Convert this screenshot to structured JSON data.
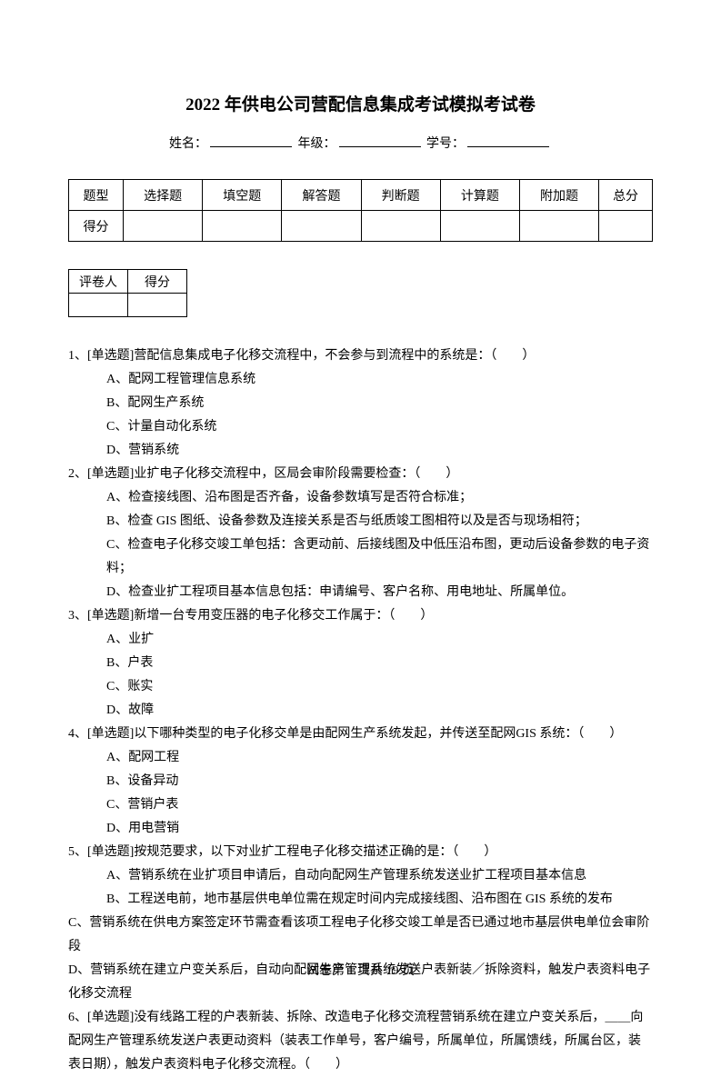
{
  "title": "2022 年供电公司营配信息集成考试模拟考试卷",
  "infoLabels": {
    "name": "姓名：",
    "grade": "年级：",
    "id": "学号："
  },
  "scoreTable": {
    "row1": [
      "题型",
      "选择题",
      "填空题",
      "解答题",
      "判断题",
      "计算题",
      "附加题",
      "总分"
    ],
    "row2": [
      "得分",
      "",
      "",
      "",
      "",
      "",
      "",
      ""
    ]
  },
  "graderTable": {
    "row1": [
      "评卷人",
      "得分"
    ],
    "row2": [
      "",
      ""
    ]
  },
  "q1": {
    "stem": "1、[单选题]营配信息集成电子化移交流程中，不会参与到流程中的系统是：（　　）",
    "a": "A、配网工程管理信息系统",
    "b": "B、配网生产系统",
    "c": "C、计量自动化系统",
    "d": "D、营销系统"
  },
  "q2": {
    "stem": "2、[单选题]业扩电子化移交流程中，区局会审阶段需要检查：（　　）",
    "a": "A、检查接线图、沿布图是否齐备，设备参数填写是否符合标准；",
    "b": "B、检查 GIS 图纸、设备参数及连接关系是否与纸质竣工图相符以及是否与现场相符；",
    "c": "C、检查电子化移交竣工单包括：含更动前、后接线图及中低压沿布图，更动后设备参数的电子资料；",
    "d": "D、检查业扩工程项目基本信息包括：申请编号、客户名称、用电地址、所属单位。"
  },
  "q3": {
    "stem": "3、[单选题]新增一台专用变压器的电子化移交工作属于：（　　）",
    "a": "A、业扩",
    "b": "B、户表",
    "c": "C、账实",
    "d": "D、故障"
  },
  "q4": {
    "stem": "4、[单选题]以下哪种类型的电子化移交单是由配网生产系统发起，并传送至配网GIS 系统：（　　）",
    "a": "A、配网工程",
    "b": "B、设备异动",
    "c": "C、营销户表",
    "d": "D、用电营销"
  },
  "q5": {
    "stem": "5、[单选题]按规范要求，以下对业扩工程电子化移交描述正确的是：（　　）",
    "a": "A、营销系统在业扩项目申请后，自动向配网生产管理系统发送业扩工程项目基本信息",
    "b": "B、工程送电前，地市基层供电单位需在规定时间内完成接线图、沿布图在 GIS 系统的发布",
    "c": "C、营销系统在供电方案签定环节需查看该项工程电子化移交竣工单是否已通过地市基层供电单位会审阶段",
    "d": "D、营销系统在建立户变关系后，自动向配网生产管理系统发送户表新装／拆除资料，触发户表资料电子化移交流程"
  },
  "q6": {
    "stem": "6、[单选题]没有线路工程的户表新装、拆除、改造电子化移交流程营销系统在建立户变关系后，＿＿向配网生产管理系统发送户表更动资料（装表工作单号，客户编号，所属单位，所属馈线，所属台区，装表日期），触发户表资料电子化移交流程。（　　）"
  },
  "footer": "试卷第 1 页共 19 页"
}
